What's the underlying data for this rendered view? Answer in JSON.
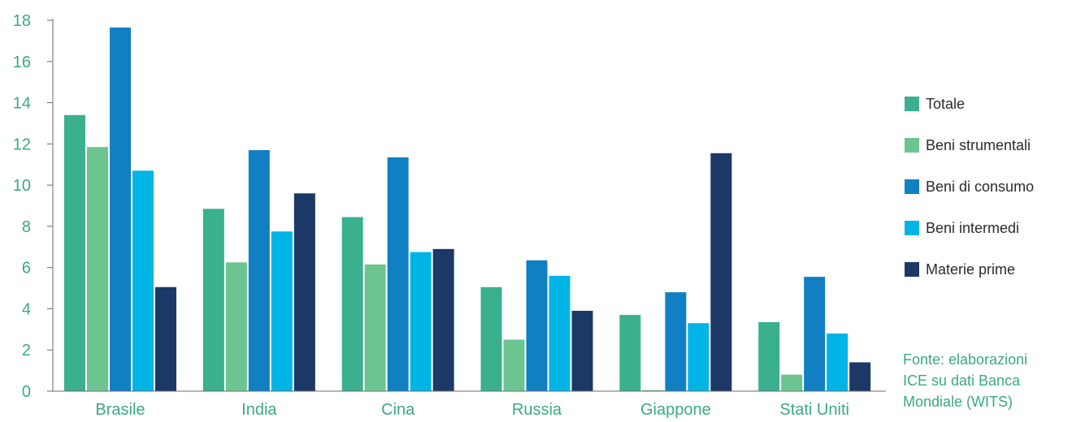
{
  "source_lines": [
    "Fonte: elaborazioni",
    "ICE su dati Banca",
    "Mondiale (WITS)"
  ],
  "colors": {
    "accent_text": "#3aa985",
    "axis": "#6b6b6b"
  },
  "chart_data": {
    "type": "bar",
    "categories": [
      "Brasile",
      "India",
      "Cina",
      "Russia",
      "Giappone",
      "Stati Uniti"
    ],
    "series": [
      {
        "name": "Totale",
        "color": "#3bb08f",
        "values": [
          13.4,
          8.85,
          8.45,
          5.05,
          3.7,
          3.35
        ]
      },
      {
        "name": "Beni strumentali",
        "color": "#6cc490",
        "values": [
          11.85,
          6.25,
          6.15,
          2.5,
          0.05,
          0.8
        ]
      },
      {
        "name": "Beni di consumo",
        "color": "#1080c2",
        "values": [
          17.65,
          11.7,
          11.35,
          6.35,
          4.8,
          5.55
        ]
      },
      {
        "name": "Beni intermedi",
        "color": "#00b4e6",
        "values": [
          10.7,
          7.75,
          6.75,
          5.6,
          3.3,
          2.8
        ]
      },
      {
        "name": "Materie prime",
        "color": "#1c3866",
        "values": [
          5.05,
          9.6,
          6.9,
          3.9,
          11.55,
          1.4
        ]
      }
    ],
    "y_ticks": [
      0,
      2,
      4,
      6,
      8,
      10,
      12,
      14,
      16,
      18
    ],
    "ylim": [
      0,
      18
    ],
    "grid": false,
    "legend_position": "right",
    "title": "",
    "xlabel": "",
    "ylabel": ""
  }
}
